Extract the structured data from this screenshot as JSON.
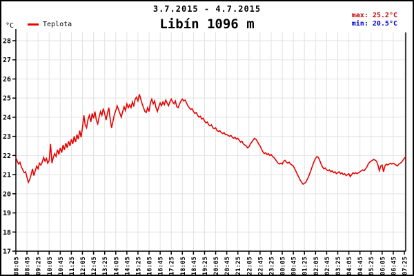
{
  "header": {
    "date_range": "3.7.2015 - 4.7.2015",
    "title": "Libín 1096 m",
    "max_label": "max: ",
    "max_value": "25.2°C",
    "min_label": "min: ",
    "min_value": "20.5°C"
  },
  "legend": {
    "series_label": "Teplota"
  },
  "axes": {
    "unit_label": "°C"
  },
  "colors": {
    "line": "#e80000",
    "max_text": "#cc0000",
    "min_text": "#0000cc",
    "grid": "#e2e2e2",
    "axis": "#000000"
  },
  "chart_data": {
    "type": "line",
    "title": "Libín 1096 m",
    "subtitle": "3.7.2015 - 4.7.2015",
    "ylabel": "°C",
    "ylim": [
      17,
      28
    ],
    "grid": true,
    "legend_position": "top-left",
    "stats": {
      "max": 25.2,
      "min": 20.5
    },
    "y_ticks": [
      17,
      18,
      19,
      20,
      21,
      22,
      23,
      24,
      25,
      26,
      27,
      28
    ],
    "x_tick_labels": [
      "08:05",
      "08:45",
      "09:25",
      "10:05",
      "10:45",
      "11:25",
      "12:05",
      "12:45",
      "13:25",
      "14:05",
      "14:45",
      "15:25",
      "16:05",
      "16:45",
      "17:25",
      "18:05",
      "18:45",
      "19:25",
      "20:05",
      "20:45",
      "21:25",
      "22:05",
      "22:45",
      "23:25",
      "00:05",
      "00:45",
      "01:25",
      "02:05",
      "02:45",
      "03:25",
      "04:05",
      "04:45",
      "05:25",
      "06:05",
      "06:45",
      "07:25"
    ],
    "series": [
      {
        "name": "Teplota",
        "unit": "°C",
        "start_time": "08:05",
        "interval_minutes": 5,
        "values": [
          21.9,
          21.7,
          21.55,
          21.65,
          21.4,
          21.25,
          21.1,
          21.15,
          20.85,
          20.6,
          20.75,
          21.0,
          21.3,
          20.95,
          21.2,
          21.45,
          21.3,
          21.6,
          21.5,
          21.65,
          21.9,
          21.7,
          21.85,
          21.6,
          21.75,
          22.6,
          21.6,
          21.9,
          22.1,
          21.95,
          22.3,
          22.05,
          22.4,
          22.15,
          22.55,
          22.3,
          22.65,
          22.4,
          22.75,
          22.5,
          22.85,
          22.6,
          23.0,
          22.7,
          23.1,
          22.85,
          23.3,
          22.95,
          23.45,
          24.1,
          23.6,
          23.45,
          23.9,
          24.1,
          23.75,
          24.2,
          23.95,
          24.3,
          23.85,
          23.65,
          24.0,
          24.3,
          24.1,
          24.45,
          24.2,
          23.85,
          24.2,
          24.5,
          23.9,
          23.45,
          23.8,
          24.15,
          24.35,
          24.6,
          24.4,
          24.2,
          24.0,
          24.3,
          24.55,
          24.35,
          24.7,
          24.5,
          24.65,
          24.5,
          24.8,
          24.6,
          24.95,
          25.05,
          24.85,
          25.2,
          24.95,
          24.7,
          24.5,
          24.3,
          24.25,
          24.5,
          24.3,
          24.75,
          24.95,
          24.7,
          24.85,
          24.5,
          24.3,
          24.55,
          24.75,
          24.6,
          24.8,
          24.65,
          24.9,
          24.75,
          24.6,
          24.8,
          24.95,
          24.8,
          24.7,
          24.85,
          24.55,
          24.5,
          24.7,
          24.85,
          24.95,
          24.85,
          24.9,
          24.75,
          24.6,
          24.5,
          24.4,
          24.45,
          24.3,
          24.2,
          24.25,
          24.1,
          24.0,
          24.05,
          23.9,
          23.95,
          23.8,
          23.7,
          23.75,
          23.6,
          23.55,
          23.6,
          23.45,
          23.4,
          23.45,
          23.3,
          23.25,
          23.3,
          23.2,
          23.15,
          23.2,
          23.1,
          23.1,
          23.05,
          23.0,
          23.05,
          22.95,
          22.9,
          22.95,
          22.85,
          22.9,
          22.8,
          22.7,
          22.75,
          22.6,
          22.55,
          22.5,
          22.4,
          22.45,
          22.6,
          22.7,
          22.8,
          22.9,
          22.85,
          22.75,
          22.6,
          22.5,
          22.35,
          22.2,
          22.1,
          22.15,
          22.05,
          22.1,
          22.0,
          22.05,
          21.95,
          21.9,
          21.8,
          21.7,
          21.6,
          21.55,
          21.6,
          21.55,
          21.7,
          21.75,
          21.65,
          21.6,
          21.65,
          21.55,
          21.5,
          21.45,
          21.3,
          21.15,
          21.0,
          20.85,
          20.7,
          20.6,
          20.5,
          20.55,
          20.6,
          20.75,
          20.9,
          21.1,
          21.3,
          21.5,
          21.7,
          21.85,
          21.95,
          21.9,
          21.75,
          21.55,
          21.4,
          21.3,
          21.35,
          21.25,
          21.2,
          21.25,
          21.15,
          21.2,
          21.1,
          21.15,
          21.05,
          21.1,
          21.15,
          21.05,
          21.1,
          21.0,
          21.05,
          20.95,
          21.0,
          21.05,
          20.9,
          21.0,
          21.1,
          21.05,
          21.1,
          21.05,
          21.1,
          21.15,
          21.2,
          21.25,
          21.2,
          21.3,
          21.4,
          21.55,
          21.65,
          21.7,
          21.75,
          21.8,
          21.75,
          21.7,
          21.5,
          21.2,
          21.45,
          21.5,
          21.15,
          21.45,
          21.55,
          21.5,
          21.55,
          21.6,
          21.55,
          21.6,
          21.55,
          21.5,
          21.45,
          21.55,
          21.6,
          21.65,
          21.75,
          21.85,
          21.95
        ]
      }
    ]
  }
}
